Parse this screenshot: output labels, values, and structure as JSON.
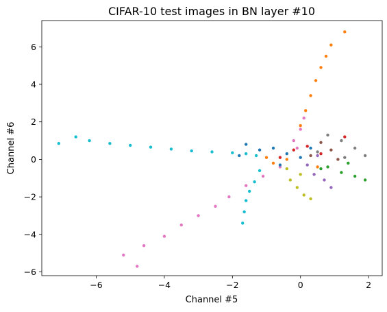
{
  "chart_data": {
    "type": "scatter",
    "title": "CIFAR-10 test images in BN layer #10",
    "xlabel": "Channel #5",
    "ylabel": "Channel #6",
    "xlim": [
      -7.6,
      2.4
    ],
    "ylim": [
      -6.2,
      7.4
    ],
    "xticks": [
      -6,
      -4,
      -2,
      0,
      2
    ],
    "yticks": [
      -6,
      -4,
      -2,
      0,
      2,
      4,
      6
    ],
    "xtick_labels": [
      "−6",
      "−4",
      "−2",
      "0",
      "2"
    ],
    "ytick_labels": [
      "−6",
      "−4",
      "−2",
      "0",
      "2",
      "4",
      "6"
    ],
    "grid": false,
    "legend": "none",
    "colors": [
      "#1f77b4",
      "#ff7f0e",
      "#2ca02c",
      "#d62728",
      "#9467bd",
      "#8c564b",
      "#e377c2",
      "#7f7f7f",
      "#bcbd22",
      "#17becf"
    ],
    "series": [
      {
        "color": "#17becf",
        "points": [
          [
            -7.1,
            0.85
          ],
          [
            -6.6,
            1.2
          ],
          [
            -6.2,
            1.0
          ],
          [
            -5.6,
            0.85
          ],
          [
            -5.0,
            0.75
          ],
          [
            -4.4,
            0.65
          ],
          [
            -3.8,
            0.55
          ],
          [
            -3.2,
            0.45
          ],
          [
            -2.6,
            0.4
          ],
          [
            -2.0,
            0.35
          ],
          [
            -1.6,
            0.3
          ],
          [
            -1.3,
            0.2
          ],
          [
            -1.2,
            -0.6
          ],
          [
            -1.35,
            -1.2
          ],
          [
            -1.5,
            -1.7
          ],
          [
            -1.6,
            -2.2
          ],
          [
            -1.65,
            -2.8
          ],
          [
            -1.7,
            -3.4
          ]
        ]
      },
      {
        "color": "#e377c2",
        "points": [
          [
            -4.8,
            -5.7
          ],
          [
            -5.2,
            -5.1
          ],
          [
            -4.6,
            -4.6
          ],
          [
            -4.0,
            -4.1
          ],
          [
            -3.5,
            -3.5
          ],
          [
            -3.0,
            -3.0
          ],
          [
            -2.5,
            -2.5
          ],
          [
            -2.1,
            -2.0
          ],
          [
            -1.6,
            -1.4
          ],
          [
            -1.1,
            -0.9
          ],
          [
            -0.6,
            -0.4
          ],
          [
            -0.1,
            0.6
          ],
          [
            0.0,
            1.6
          ],
          [
            0.1,
            2.2
          ],
          [
            -0.2,
            1.0
          ]
        ]
      },
      {
        "color": "#ff7f0e",
        "points": [
          [
            0.0,
            1.8
          ],
          [
            0.15,
            2.6
          ],
          [
            0.3,
            3.4
          ],
          [
            0.45,
            4.2
          ],
          [
            0.6,
            4.9
          ],
          [
            0.75,
            5.5
          ],
          [
            0.9,
            6.1
          ],
          [
            1.3,
            6.8
          ],
          [
            -0.4,
            0.0
          ],
          [
            -0.8,
            -0.2
          ],
          [
            -1.0,
            0.1
          ],
          [
            0.5,
            -0.4
          ]
        ]
      },
      {
        "color": "#1f77b4",
        "points": [
          [
            -1.6,
            0.8
          ],
          [
            -1.2,
            0.5
          ],
          [
            -0.8,
            0.6
          ],
          [
            -0.4,
            0.3
          ],
          [
            0.0,
            0.1
          ],
          [
            -0.6,
            -0.3
          ],
          [
            -1.8,
            0.2
          ],
          [
            0.3,
            0.6
          ]
        ]
      },
      {
        "color": "#2ca02c",
        "points": [
          [
            0.8,
            -0.4
          ],
          [
            1.2,
            -0.7
          ],
          [
            1.6,
            -0.9
          ],
          [
            1.9,
            -1.1
          ],
          [
            1.4,
            -0.2
          ],
          [
            0.6,
            -0.5
          ]
        ]
      },
      {
        "color": "#bcbd22",
        "points": [
          [
            -0.3,
            -1.1
          ],
          [
            -0.1,
            -1.5
          ],
          [
            0.1,
            -1.9
          ],
          [
            0.3,
            -2.1
          ],
          [
            0.0,
            -0.8
          ],
          [
            -0.4,
            -0.5
          ]
        ]
      },
      {
        "color": "#9467bd",
        "points": [
          [
            0.4,
            -0.8
          ],
          [
            0.7,
            -1.1
          ],
          [
            0.9,
            -1.5
          ],
          [
            0.2,
            -0.3
          ],
          [
            0.5,
            0.2
          ]
        ]
      },
      {
        "color": "#7f7f7f",
        "points": [
          [
            0.8,
            1.3
          ],
          [
            1.2,
            1.0
          ],
          [
            1.6,
            0.6
          ],
          [
            1.9,
            0.2
          ],
          [
            1.3,
            0.1
          ],
          [
            0.5,
            0.4
          ]
        ]
      },
      {
        "color": "#8c564b",
        "points": [
          [
            0.6,
            0.9
          ],
          [
            0.9,
            0.5
          ],
          [
            1.1,
            0.0
          ],
          [
            0.3,
            0.2
          ]
        ]
      },
      {
        "color": "#d62728",
        "points": [
          [
            -0.2,
            0.5
          ],
          [
            0.2,
            0.7
          ],
          [
            0.6,
            0.3
          ],
          [
            -0.6,
            0.1
          ],
          [
            1.3,
            1.2
          ]
        ]
      }
    ]
  }
}
